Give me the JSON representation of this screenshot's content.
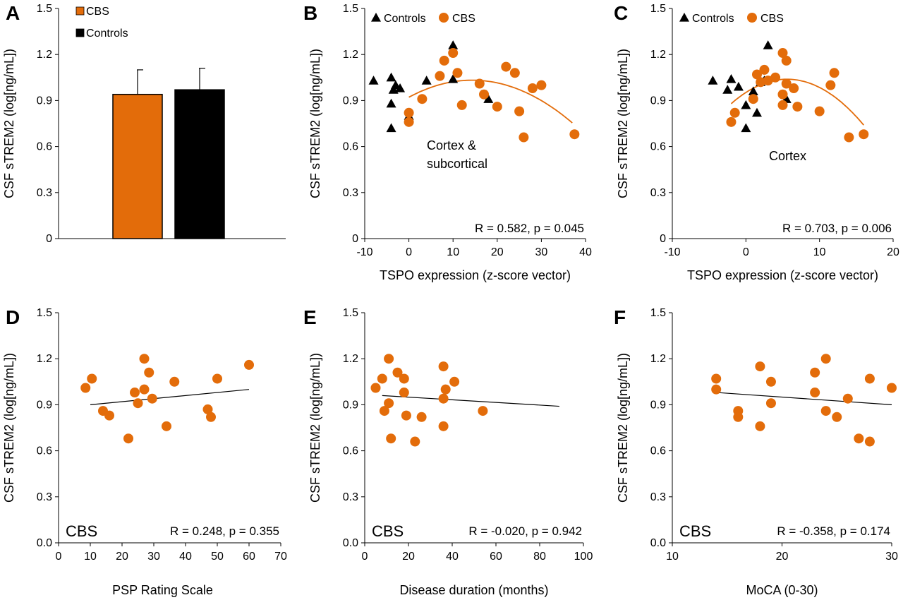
{
  "colors": {
    "cbs": "#E36C0A",
    "controls": "#000000",
    "fit_cbs": "#E36C0A",
    "fit_line": "#000000"
  },
  "chart_data": [
    {
      "panel": "A",
      "type": "bar",
      "categories": [
        "CBS",
        "Controls"
      ],
      "values": [
        0.94,
        0.97
      ],
      "error_upper": [
        1.1,
        1.11
      ],
      "legend": [
        "CBS",
        "Controls"
      ],
      "ylabel": "CSF sTREM2 (log[ng/mL])",
      "ylim": [
        0,
        1.5
      ],
      "yticks": [
        "0",
        "0.3",
        "0.6",
        "0.9",
        "1.2",
        "1.5"
      ]
    },
    {
      "panel": "B",
      "type": "scatter",
      "xlabel": "TSPO expression  (z-score vector)",
      "ylabel": "CSF sTREM2 (log[ng/mL])",
      "xlim": [
        -10,
        40
      ],
      "ylim": [
        0,
        1.5
      ],
      "xticks": [
        "-10",
        "0",
        "10",
        "20",
        "30",
        "40"
      ],
      "yticks": [
        "0",
        "0.3",
        "0.6",
        "0.9",
        "1.2",
        "1.5"
      ],
      "legend": [
        "Controls",
        "CBS"
      ],
      "annotation": "Cortex & subcortical",
      "annotation_lines": [
        "Cortex &",
        "subcortical"
      ],
      "stat": "R = 0.582, p = 0.045",
      "series": [
        {
          "name": "Controls",
          "marker": "triangle",
          "x": [
            -8,
            -4,
            -3.5,
            -3,
            -2,
            -4,
            -4,
            0,
            4,
            10,
            10,
            18
          ],
          "y": [
            1.03,
            1.05,
            0.97,
            1.0,
            0.98,
            0.88,
            0.72,
            0.8,
            1.03,
            1.26,
            1.04,
            0.91
          ]
        },
        {
          "name": "CBS",
          "marker": "circle",
          "x": [
            0,
            0,
            3,
            7,
            8,
            11,
            10,
            12,
            16,
            17,
            20,
            22,
            24,
            25,
            26,
            28,
            30,
            37.5
          ],
          "y": [
            0.82,
            0.76,
            0.91,
            1.06,
            1.16,
            1.08,
            1.21,
            0.87,
            1.01,
            0.94,
            0.86,
            1.12,
            1.08,
            0.83,
            0.66,
            0.98,
            1.0,
            0.68
          ]
        }
      ],
      "fit": {
        "type": "quadratic",
        "a": -0.000541,
        "b": 0.0155,
        "c": 0.9215,
        "x_range": [
          0,
          37
        ]
      }
    },
    {
      "panel": "C",
      "type": "scatter",
      "xlabel": "TSPO expression  (z-score vector)",
      "ylabel": "CSF sTREM2 (log[ng/mL])",
      "xlim": [
        -10,
        20
      ],
      "ylim": [
        0,
        1.5
      ],
      "xticks": [
        "-10",
        "0",
        "10",
        "20"
      ],
      "yticks": [
        "0",
        "0.3",
        "0.6",
        "0.9",
        "1.2",
        "1.5"
      ],
      "legend": [
        "Controls",
        "CBS"
      ],
      "annotation": "Cortex",
      "annotation_lines": [
        "Cortex"
      ],
      "stat": "R = 0.703, p = 0.006",
      "series": [
        {
          "name": "Controls",
          "marker": "triangle",
          "x": [
            -4.5,
            -2,
            -2.5,
            -1,
            0,
            1,
            2,
            2.5,
            3,
            1.5,
            0,
            5.5
          ],
          "y": [
            1.03,
            1.04,
            0.97,
            0.99,
            0.87,
            0.96,
            1.02,
            1.03,
            1.26,
            0.82,
            0.72,
            0.91
          ]
        },
        {
          "name": "CBS",
          "marker": "circle",
          "x": [
            -2,
            -1.5,
            1,
            1.5,
            2,
            2.5,
            3,
            4,
            5,
            5,
            5.5,
            5,
            5.5,
            6.5,
            7,
            10,
            11.5,
            12,
            14,
            16
          ],
          "y": [
            0.76,
            0.82,
            0.91,
            1.07,
            1.02,
            1.1,
            1.03,
            1.05,
            0.94,
            0.87,
            1.16,
            1.21,
            1.01,
            0.98,
            0.86,
            0.83,
            1.0,
            1.08,
            0.66,
            0.68
          ]
        }
      ],
      "fit": {
        "type": "quadratic",
        "a": -0.00276,
        "b": 0.03089,
        "c": 0.9523,
        "x_range": [
          -2,
          16
        ]
      }
    },
    {
      "panel": "D",
      "type": "scatter",
      "xlabel": "PSP Rating Scale",
      "ylabel": "CSF sTREM2 (log[ng/mL])",
      "xlim": [
        0,
        70
      ],
      "ylim": [
        0,
        1.5
      ],
      "xticks": [
        "0",
        "10",
        "20",
        "30",
        "40",
        "50",
        "60",
        "70"
      ],
      "yticks": [
        "0.0",
        "0.3",
        "0.6",
        "0.9",
        "1.2",
        "1.5"
      ],
      "group_label": "CBS",
      "stat": "R = 0.248, p = 0.355",
      "series": [
        {
          "name": "CBS",
          "marker": "circle",
          "x": [
            8.5,
            10.5,
            14,
            16,
            22,
            24,
            25,
            27,
            27,
            28.5,
            29.5,
            34,
            36.5,
            47,
            48,
            50,
            60
          ],
          "y": [
            1.01,
            1.07,
            0.86,
            0.83,
            0.68,
            0.98,
            0.91,
            1.2,
            1.0,
            1.11,
            0.94,
            0.76,
            1.05,
            0.87,
            0.82,
            1.07,
            1.16
          ]
        }
      ],
      "fit": {
        "type": "linear",
        "x": [
          10,
          60
        ],
        "y": [
          0.9,
          1.0
        ]
      }
    },
    {
      "panel": "E",
      "type": "scatter",
      "xlabel": "Disease duration (months)",
      "ylabel": "CSF sTREM2 (log[ng/mL])",
      "xlim": [
        0,
        100
      ],
      "ylim": [
        0,
        1.5
      ],
      "xticks": [
        "0",
        "20",
        "40",
        "60",
        "80",
        "100"
      ],
      "yticks": [
        "0.0",
        "0.3",
        "0.6",
        "0.9",
        "1.2",
        "1.5"
      ],
      "group_label": "CBS",
      "stat": "R = -0.020, p = 0.942",
      "series": [
        {
          "name": "CBS",
          "marker": "circle",
          "x": [
            5,
            8,
            9,
            11,
            11,
            12,
            15,
            18,
            18,
            19,
            23,
            26,
            36,
            36,
            36,
            37,
            41,
            54
          ],
          "y": [
            1.01,
            1.07,
            0.86,
            0.91,
            1.2,
            0.68,
            1.11,
            1.07,
            0.98,
            0.83,
            0.66,
            0.82,
            1.15,
            0.94,
            0.76,
            1.0,
            1.05,
            0.86
          ]
        }
      ],
      "fit": {
        "type": "linear",
        "x": [
          8,
          89
        ],
        "y": [
          0.96,
          0.89
        ]
      }
    },
    {
      "panel": "F",
      "type": "scatter",
      "xlabel": "MoCA (0-30)",
      "ylabel": "CSF sTREM2 (log[ng/mL])",
      "xlim": [
        10,
        30
      ],
      "ylim": [
        0,
        1.5
      ],
      "xticks": [
        "10",
        "20",
        "30"
      ],
      "yticks": [
        "0.0",
        "0.3",
        "0.6",
        "0.9",
        "1.2",
        "1.5"
      ],
      "group_label": "CBS",
      "stat": "R = -0.358, p = 0.174",
      "series": [
        {
          "name": "CBS",
          "marker": "circle",
          "x": [
            14,
            14,
            16,
            16,
            18,
            18,
            19,
            19,
            23,
            23,
            24,
            24,
            25,
            26,
            27,
            28,
            28,
            30
          ],
          "y": [
            1.07,
            1.0,
            0.86,
            0.82,
            1.15,
            0.76,
            1.05,
            0.91,
            1.11,
            0.98,
            1.2,
            0.86,
            0.82,
            0.94,
            0.68,
            1.07,
            0.66,
            1.01
          ]
        }
      ],
      "fit": {
        "type": "linear",
        "x": [
          14,
          30
        ],
        "y": [
          0.98,
          0.9
        ]
      }
    }
  ]
}
